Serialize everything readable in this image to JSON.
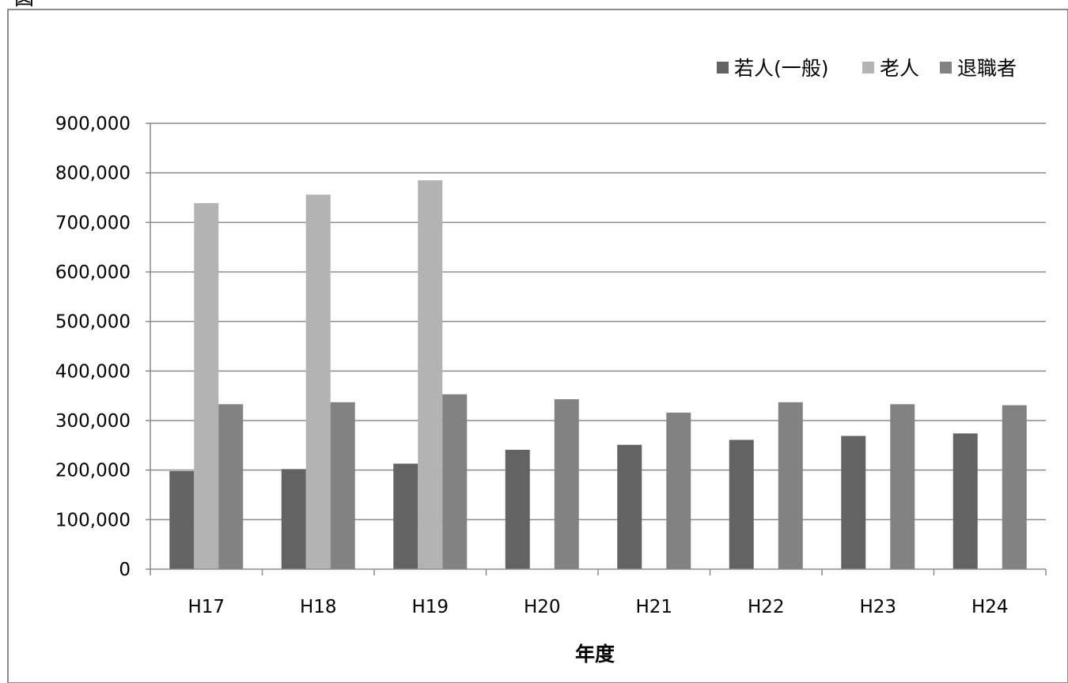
{
  "caption_visible_fragment": "図",
  "chart_data": {
    "type": "bar",
    "categories": [
      "H17",
      "H18",
      "H19",
      "H20",
      "H21",
      "H22",
      "H23",
      "H24"
    ],
    "series": [
      {
        "name": "若人(一般)",
        "color": "#636363",
        "values": [
          198000,
          202000,
          213000,
          241000,
          251000,
          261000,
          269000,
          274000
        ]
      },
      {
        "name": "老人",
        "color": "#b3b3b3",
        "values": [
          739000,
          756000,
          785000,
          null,
          null,
          null,
          null,
          null
        ]
      },
      {
        "name": "退職者",
        "color": "#828282",
        "values": [
          333000,
          337000,
          353000,
          343000,
          316000,
          337000,
          333000,
          331000
        ]
      }
    ],
    "title": "",
    "xlabel": "年度",
    "ylabel": "",
    "ylim": [
      0,
      900000
    ],
    "yticks": [
      0,
      100000,
      200000,
      300000,
      400000,
      500000,
      600000,
      700000,
      800000,
      900000
    ],
    "grid": true,
    "legend_position": "top-right"
  }
}
